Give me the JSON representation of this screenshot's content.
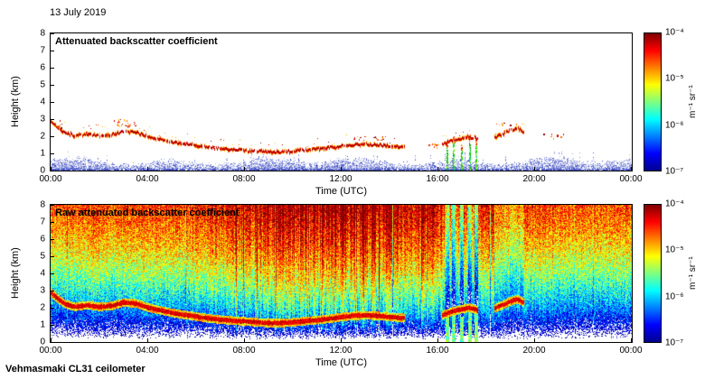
{
  "date_label": "13 July 2019",
  "footer_label": "Vehmasmaki CL31 ceilometer",
  "colorbar": {
    "unit": "m⁻¹ sr⁻¹",
    "ticks": [
      "10⁻⁴",
      "10⁻⁵",
      "10⁻⁶",
      "10⁻⁷"
    ],
    "scale": "log",
    "min": 1e-07,
    "max": 0.0001
  },
  "colors": {
    "jet_stops": [
      [
        0,
        "#00008f"
      ],
      [
        0.125,
        "#0000ff"
      ],
      [
        0.375,
        "#00ffff"
      ],
      [
        0.625,
        "#ffff00"
      ],
      [
        0.875,
        "#ff0000"
      ],
      [
        1,
        "#800000"
      ]
    ],
    "aerosol": [
      "#b0b8ea",
      "#97a1e2",
      "#7a86d8",
      "#5a68cc",
      "#3d49bb"
    ],
    "cloud": [
      "#8b0000",
      "#c80000",
      "#f03000",
      "#ff6a00",
      "#ffa500",
      "#ffd700"
    ],
    "precip": [
      "#009600",
      "#00c800",
      "#3cf000",
      "#96ff14",
      "#00c89b"
    ]
  },
  "chart_data": [
    {
      "type": "heatmap",
      "title": "Attenuated backscatter coefficient",
      "xlabel": "Time (UTC)",
      "ylabel": "Height (km)",
      "x_tick_labels": [
        "00:00",
        "04:00",
        "08:00",
        "12:00",
        "16:00",
        "20:00",
        "00:00"
      ],
      "y_tick_labels": [
        "0",
        "1",
        "2",
        "3",
        "4",
        "5",
        "6",
        "7",
        "8"
      ],
      "xlim_hours": [
        0,
        24
      ],
      "ylim_km": [
        0,
        8
      ],
      "colorbar_range_m1sr1": [
        1e-07,
        0.0001
      ],
      "aerosol_layer_top_km": 0.8,
      "cloud_base_segments": [
        [
          [
            0.0,
            2.9
          ],
          [
            0.25,
            2.55
          ],
          [
            0.6,
            2.2
          ],
          [
            1.0,
            2.05
          ],
          [
            1.5,
            2.15
          ],
          [
            2.0,
            2.05
          ],
          [
            2.5,
            2.1
          ],
          [
            3.0,
            2.3
          ],
          [
            3.5,
            2.25
          ],
          [
            4.0,
            2.0
          ],
          [
            4.5,
            1.85
          ],
          [
            5.0,
            1.7
          ],
          [
            5.5,
            1.58
          ],
          [
            6.0,
            1.48
          ],
          [
            6.5,
            1.38
          ],
          [
            7.0,
            1.3
          ],
          [
            7.5,
            1.25
          ],
          [
            8.0,
            1.2
          ],
          [
            8.5,
            1.15
          ],
          [
            9.0,
            1.1
          ],
          [
            9.5,
            1.1
          ],
          [
            10.0,
            1.15
          ],
          [
            10.5,
            1.22
          ],
          [
            11.0,
            1.28
          ],
          [
            11.5,
            1.35
          ],
          [
            12.0,
            1.45
          ],
          [
            12.5,
            1.52
          ],
          [
            13.0,
            1.56
          ],
          [
            13.5,
            1.52
          ],
          [
            14.0,
            1.46
          ],
          [
            14.6,
            1.4
          ]
        ],
        [
          [
            16.15,
            1.55
          ],
          [
            16.5,
            1.75
          ],
          [
            16.9,
            1.9
          ],
          [
            17.3,
            2.0
          ],
          [
            17.65,
            1.85
          ]
        ],
        [
          [
            18.3,
            1.95
          ],
          [
            18.65,
            2.15
          ],
          [
            18.95,
            2.35
          ],
          [
            19.25,
            2.5
          ],
          [
            19.55,
            2.3
          ]
        ]
      ],
      "scattered_cloud_dots": [
        {
          "t0": 2.6,
          "t1": 3.5,
          "h0": 2.55,
          "h1": 3.0,
          "n": 26
        },
        {
          "t0": 0.0,
          "t1": 0.4,
          "h0": 2.5,
          "h1": 2.95,
          "n": 10
        },
        {
          "t0": 12.2,
          "t1": 13.9,
          "h0": 1.75,
          "h1": 2.0,
          "n": 14
        },
        {
          "t0": 15.6,
          "t1": 16.1,
          "h0": 1.35,
          "h1": 1.6,
          "n": 8
        },
        {
          "t0": 18.1,
          "t1": 19.5,
          "h0": 2.5,
          "h1": 2.8,
          "n": 10
        },
        {
          "t0": 20.3,
          "t1": 21.3,
          "h0": 1.85,
          "h1": 2.15,
          "n": 9
        }
      ],
      "precip_streaks": [
        {
          "t": 16.35,
          "top_km": 1.7
        },
        {
          "t": 16.6,
          "top_km": 1.95
        },
        {
          "t": 16.95,
          "top_km": 1.5
        },
        {
          "t": 17.3,
          "top_km": 2.0
        },
        {
          "t": 17.55,
          "top_km": 1.8
        }
      ]
    },
    {
      "type": "heatmap",
      "title": "Raw attenuated backscatter coefficient",
      "xlabel": "Time (UTC)",
      "ylabel": "Height (km)",
      "x_tick_labels": [
        "00:00",
        "04:00",
        "08:00",
        "12:00",
        "16:00",
        "20:00",
        "00:00"
      ],
      "y_tick_labels": [
        "0",
        "1",
        "2",
        "3",
        "4",
        "5",
        "6",
        "7",
        "8"
      ],
      "xlim_hours": [
        0,
        24
      ],
      "ylim_km": [
        0,
        8
      ],
      "colorbar_range_m1sr1": [
        1e-07,
        0.0001
      ],
      "noise_profile": {
        "heights_km": [
          0,
          0.4,
          0.8,
          1.5,
          2.2,
          3,
          4,
          5,
          6,
          7,
          8
        ],
        "log10_values": [
          -7.7,
          -7.25,
          -6.9,
          -6.5,
          -6.15,
          -5.85,
          -5.5,
          -5.2,
          -4.95,
          -4.75,
          -4.6
        ]
      },
      "solar_noise": {
        "peak_hour": 12.3,
        "sigma_hours": 4.2,
        "amplitude_decades": 0.55
      },
      "cloud_base_same_as_top_panel": true
    }
  ]
}
